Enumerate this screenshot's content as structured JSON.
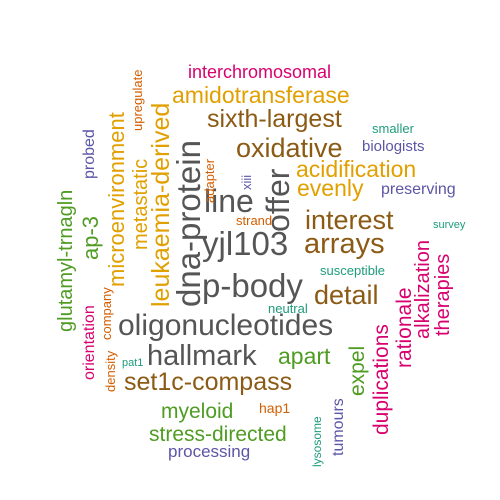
{
  "words": [
    {
      "text": "interchromosomal",
      "color": "#d8006f"
    },
    {
      "text": "amidotransferase",
      "color": "#e1a000"
    },
    {
      "text": "sixth-largest",
      "color": "#8b5a14"
    },
    {
      "text": "smaller",
      "color": "#1e9c7b"
    },
    {
      "text": "biologists",
      "color": "#5b56a6"
    },
    {
      "text": "oxidative",
      "color": "#8b5a14"
    },
    {
      "text": "acidification",
      "color": "#e1a000"
    },
    {
      "text": "evenly",
      "color": "#e1a000"
    },
    {
      "text": "preserving",
      "color": "#5b56a6"
    },
    {
      "text": "interest",
      "color": "#8b5a14"
    },
    {
      "text": "survey",
      "color": "#1e9c7b"
    },
    {
      "text": "arrays",
      "color": "#8b5a14"
    },
    {
      "text": "yjl103",
      "color": "#555555"
    },
    {
      "text": "susceptible",
      "color": "#1e9c7b"
    },
    {
      "text": "p-body",
      "color": "#555555"
    },
    {
      "text": "detail",
      "color": "#8b5a14"
    },
    {
      "text": "neutral",
      "color": "#1e9c7b"
    },
    {
      "text": "oligonucleotides",
      "color": "#555555"
    },
    {
      "text": "hallmark",
      "color": "#555555"
    },
    {
      "text": "apart",
      "color": "#4f9c22"
    },
    {
      "text": "set1c-compass",
      "color": "#8b5a14"
    },
    {
      "text": "pat1",
      "color": "#1e9c7b"
    },
    {
      "text": "myeloid",
      "color": "#4f9c22"
    },
    {
      "text": "hap1",
      "color": "#d55e00"
    },
    {
      "text": "stress-directed",
      "color": "#4f9c22"
    },
    {
      "text": "processing",
      "color": "#5b56a6"
    },
    {
      "text": "line",
      "color": "#555555"
    },
    {
      "text": "strand",
      "color": "#d55e00"
    },
    {
      "text": "dna-protein",
      "color": "#555555"
    },
    {
      "text": "offer",
      "color": "#555555"
    },
    {
      "text": "leukaemia-derived",
      "color": "#e1a000"
    },
    {
      "text": "metastatic",
      "color": "#e1a000"
    },
    {
      "text": "microenvironment",
      "color": "#e1a000"
    },
    {
      "text": "upregulate",
      "color": "#d55e00"
    },
    {
      "text": "company",
      "color": "#d55e00"
    },
    {
      "text": "ap-3",
      "color": "#4f9c22"
    },
    {
      "text": "probed",
      "color": "#5b56a6"
    },
    {
      "text": "glutamyl-trnagln",
      "color": "#4f9c22"
    },
    {
      "text": "orientation",
      "color": "#d8006f"
    },
    {
      "text": "density",
      "color": "#d55e00"
    },
    {
      "text": "adapter",
      "color": "#d55e00"
    },
    {
      "text": "xiii",
      "color": "#5b56a6"
    },
    {
      "text": "expel",
      "color": "#4f9c22"
    },
    {
      "text": "tumours",
      "color": "#5b56a6"
    },
    {
      "text": "lysosome",
      "color": "#1e9c7b"
    },
    {
      "text": "duplications",
      "color": "#d8006f"
    },
    {
      "text": "rationale",
      "color": "#d8006f"
    },
    {
      "text": "alkalization",
      "color": "#d8006f"
    },
    {
      "text": "therapies",
      "color": "#d8006f"
    }
  ]
}
